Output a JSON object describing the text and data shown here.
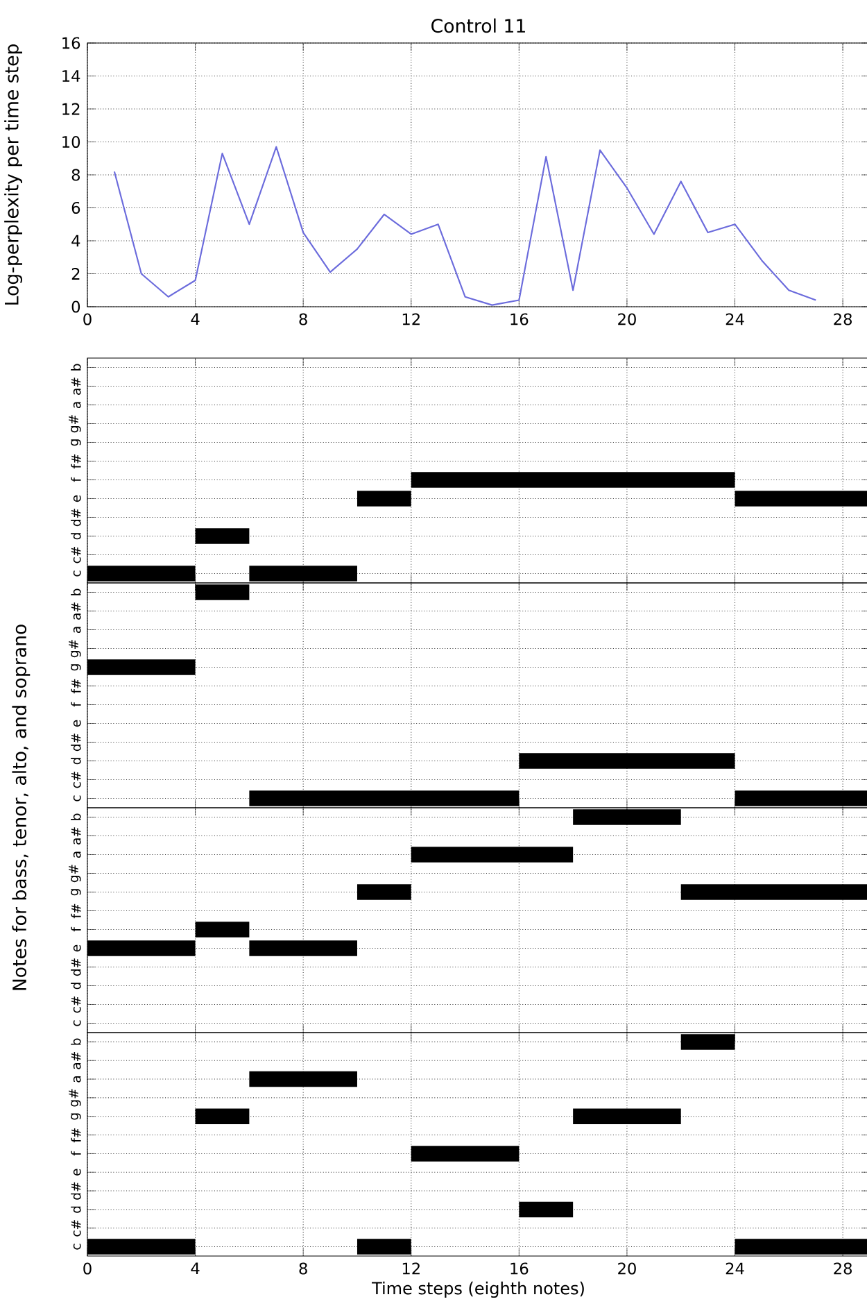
{
  "chart_data": [
    {
      "type": "line",
      "title": "Control 11",
      "ylabel": "Log-perplexity per time step",
      "xlim": [
        0,
        29
      ],
      "xticks": [
        0,
        4,
        8,
        12,
        16,
        20,
        24,
        28
      ],
      "ylim": [
        0,
        16
      ],
      "yticks": [
        0,
        2,
        4,
        6,
        8,
        10,
        12,
        14,
        16
      ],
      "grid": true,
      "line_style": "solid",
      "series": [
        {
          "color": "#6b6bdc",
          "x": [
            1,
            2,
            3,
            4,
            5,
            6,
            7,
            8,
            9,
            10,
            11,
            12,
            13,
            14,
            15,
            16,
            17,
            18,
            19,
            20,
            21,
            22,
            23,
            24,
            25,
            26,
            27
          ],
          "values": [
            8.2,
            2.0,
            0.6,
            1.6,
            9.3,
            5.0,
            9.7,
            4.5,
            2.1,
            3.5,
            5.6,
            4.4,
            5.0,
            0.6,
            0.1,
            0.4,
            9.1,
            1.0,
            9.5,
            7.2,
            4.4,
            7.6,
            4.5,
            5.0,
            2.8,
            1.0,
            0.4
          ]
        }
      ]
    },
    {
      "type": "bar",
      "orientation": "horizontal",
      "categories": [
        "b",
        "a#",
        "a",
        "g#",
        "g",
        "f#",
        "f",
        "e",
        "d#",
        "d",
        "c#",
        "c"
      ],
      "xlim": [
        0,
        29
      ],
      "xticks": [
        0,
        4,
        8,
        12,
        16,
        20,
        24,
        28
      ],
      "grid": true,
      "tick_labels": "y",
      "series": [
        {
          "color": "#000000",
          "base": [
            null,
            null,
            null,
            null,
            null,
            null,
            12,
            10,
            null,
            4,
            null,
            0
          ],
          "values": [
            null,
            null,
            null,
            null,
            null,
            null,
            12,
            2,
            null,
            2,
            null,
            4
          ]
        },
        {
          "color": "#000000",
          "base": [
            null,
            null,
            null,
            null,
            null,
            null,
            null,
            24,
            null,
            null,
            null,
            6
          ],
          "values": [
            null,
            null,
            null,
            null,
            null,
            null,
            null,
            5,
            null,
            null,
            null,
            4
          ]
        }
      ]
    },
    {
      "type": "bar",
      "orientation": "horizontal",
      "ylabel": "Notes for bass, tenor, alto, and soprano",
      "categories": [
        "b",
        "a#",
        "a",
        "g#",
        "g",
        "f#",
        "f",
        "e",
        "d#",
        "d",
        "c#",
        "c"
      ],
      "xlim": [
        0,
        29
      ],
      "xticks": [
        0,
        4,
        8,
        12,
        16,
        20,
        24,
        28
      ],
      "grid": true,
      "tick_labels": "y",
      "series": [
        {
          "color": "#000000",
          "base": [
            4,
            null,
            null,
            null,
            0,
            null,
            null,
            null,
            null,
            16,
            null,
            6
          ],
          "values": [
            2,
            null,
            null,
            null,
            4,
            null,
            null,
            null,
            null,
            8,
            null,
            10
          ]
        },
        {
          "color": "#000000",
          "base": [
            null,
            null,
            null,
            null,
            null,
            null,
            null,
            null,
            null,
            null,
            null,
            24
          ],
          "values": [
            null,
            null,
            null,
            null,
            null,
            null,
            null,
            null,
            null,
            null,
            null,
            5
          ]
        }
      ]
    },
    {
      "type": "bar",
      "orientation": "horizontal",
      "categories": [
        "b",
        "a#",
        "a",
        "g#",
        "g",
        "f#",
        "f",
        "e",
        "d#",
        "d",
        "c#",
        "c"
      ],
      "xlim": [
        0,
        29
      ],
      "xticks": [
        0,
        4,
        8,
        12,
        16,
        20,
        24,
        28
      ],
      "grid": true,
      "tick_labels": "y",
      "series": [
        {
          "color": "#000000",
          "base": [
            18,
            null,
            12,
            null,
            10,
            null,
            4,
            0,
            null,
            null,
            null,
            null
          ],
          "values": [
            4,
            null,
            6,
            null,
            2,
            null,
            2,
            4,
            null,
            null,
            null,
            null
          ]
        },
        {
          "color": "#000000",
          "base": [
            null,
            null,
            null,
            null,
            22,
            null,
            null,
            6,
            null,
            null,
            null,
            null
          ],
          "values": [
            null,
            null,
            null,
            null,
            7,
            null,
            null,
            4,
            null,
            null,
            null,
            null
          ]
        }
      ]
    },
    {
      "type": "bar",
      "orientation": "horizontal",
      "xlabel": "Time steps (eighth notes)",
      "categories": [
        "b",
        "a#",
        "a",
        "g#",
        "g",
        "f#",
        "f",
        "e",
        "d#",
        "d",
        "c#",
        "c"
      ],
      "xlim": [
        0,
        29
      ],
      "xticks": [
        0,
        4,
        8,
        12,
        16,
        20,
        24,
        28
      ],
      "grid": true,
      "series": [
        {
          "color": "#000000",
          "base": [
            22,
            null,
            6,
            null,
            4,
            null,
            12,
            null,
            null,
            16,
            null,
            0
          ],
          "values": [
            2,
            null,
            4,
            null,
            2,
            null,
            4,
            null,
            null,
            2,
            null,
            4
          ]
        },
        {
          "color": "#000000",
          "base": [
            null,
            null,
            null,
            null,
            18,
            null,
            null,
            null,
            null,
            null,
            null,
            10
          ],
          "values": [
            null,
            null,
            null,
            null,
            4,
            null,
            null,
            null,
            null,
            null,
            null,
            2
          ]
        },
        {
          "color": "#000000",
          "base": [
            null,
            null,
            null,
            null,
            null,
            null,
            null,
            null,
            null,
            null,
            null,
            24
          ],
          "values": [
            null,
            null,
            null,
            null,
            null,
            null,
            null,
            null,
            null,
            null,
            null,
            5
          ]
        }
      ]
    }
  ]
}
